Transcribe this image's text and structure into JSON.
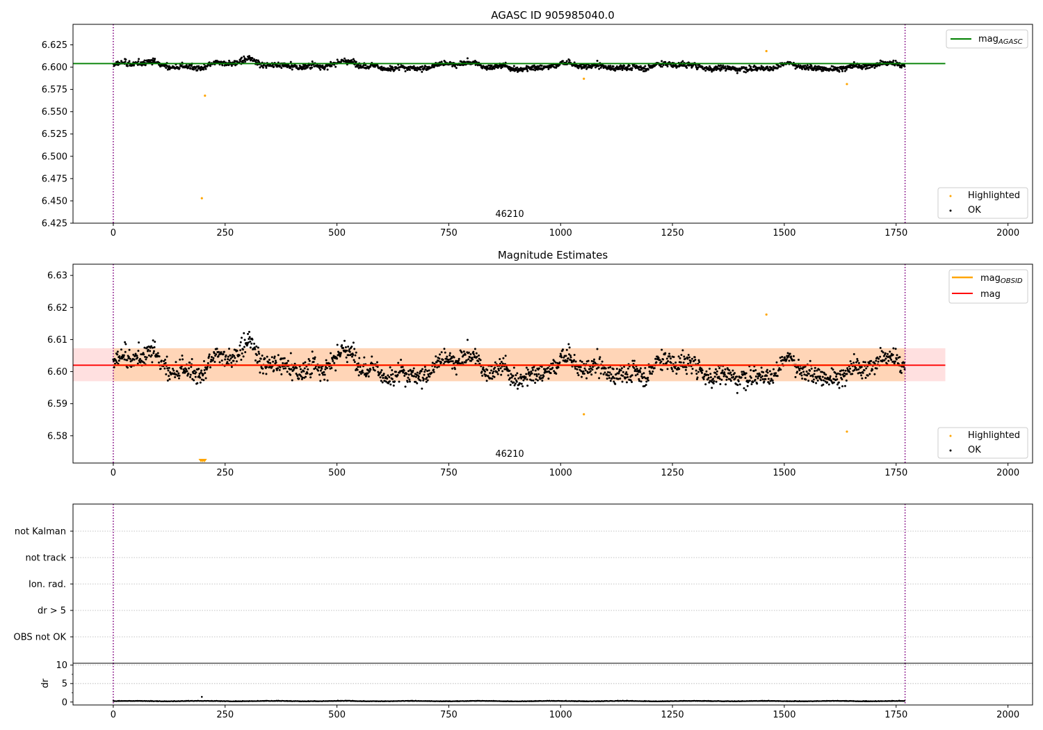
{
  "chart_data": [
    {
      "type": "scatter",
      "title": "AGASC ID 905985040.0",
      "xlim": [
        -90,
        2055
      ],
      "ylim": [
        6.425,
        6.648
      ],
      "xticks": [
        "0",
        "250",
        "500",
        "750",
        "1000",
        "1250",
        "1500",
        "1750",
        "2000"
      ],
      "yticks": [
        "6.425",
        "6.450",
        "6.475",
        "6.500",
        "6.525",
        "6.550",
        "6.575",
        "6.600",
        "6.625"
      ],
      "obsid_label": "46210",
      "obs_boundaries": [
        0,
        1770
      ],
      "mag_agasc": {
        "label": "mag",
        "subscript": "AGASC",
        "value": 6.604,
        "x_range": [
          -90,
          1860
        ],
        "color": "#008000"
      },
      "ok_series": {
        "label": "OK",
        "color": "#000000",
        "n_points": 1770,
        "mean": 6.602,
        "spread": 0.005
      },
      "highlighted": {
        "label": "Highlighted",
        "color": "#ffa500",
        "points": [
          {
            "x": 198,
            "y": 6.453
          },
          {
            "x": 205,
            "y": 6.568
          },
          {
            "x": 1052,
            "y": 6.587
          },
          {
            "x": 1460,
            "y": 6.618
          },
          {
            "x": 1640,
            "y": 6.581
          }
        ]
      }
    },
    {
      "type": "scatter",
      "title": "Magnitude Estimates",
      "xlim": [
        -90,
        2055
      ],
      "ylim": [
        6.5715,
        6.6335
      ],
      "xticks": [
        "0",
        "250",
        "500",
        "750",
        "1000",
        "1250",
        "1500",
        "1750",
        "2000"
      ],
      "yticks": [
        "6.58",
        "6.59",
        "6.60",
        "6.61",
        "6.62",
        "6.63"
      ],
      "obsid_label": "46210",
      "obs_boundaries": [
        0,
        1770
      ],
      "mag_obsid": {
        "label": "mag",
        "subscript": "OBSID",
        "color": "#ffa500",
        "value": 6.602,
        "band": [
          6.597,
          6.6073
        ],
        "x_range": [
          0,
          1770
        ]
      },
      "mag": {
        "label": "mag",
        "color": "#ff0000",
        "value": 6.602,
        "band": [
          6.597,
          6.6073
        ],
        "x_range": [
          -90,
          1860
        ]
      },
      "ok_series": {
        "label": "OK",
        "color": "#000000"
      },
      "highlighted": {
        "label": "Highlighted",
        "color": "#ffa500",
        "points": [
          {
            "x": 1052,
            "y": 6.5867
          },
          {
            "x": 1460,
            "y": 6.6178
          },
          {
            "x": 1640,
            "y": 6.5813
          }
        ],
        "below_range_markers": [
          196,
          200,
          204
        ]
      }
    },
    {
      "type": "scatter",
      "title": "",
      "xlim": [
        -90,
        2055
      ],
      "category_labels": [
        "not Kalman",
        "not track",
        "Ion. rad.",
        "dr > 5",
        "OBS not OK"
      ],
      "flag_points": [],
      "obs_boundaries": [
        0,
        1770
      ]
    },
    {
      "type": "scatter",
      "title": "",
      "ylabel": "dr",
      "xlim": [
        -90,
        2055
      ],
      "ylim": [
        -0.8,
        10.5
      ],
      "xticks": [
        "0",
        "250",
        "500",
        "750",
        "1000",
        "1250",
        "1500",
        "1750",
        "2000"
      ],
      "yticks": [
        "0",
        "5",
        "10"
      ],
      "obs_boundaries": [
        0,
        1770
      ],
      "dr_series": {
        "mean": 0.2,
        "spread": 0.12,
        "outlier": {
          "x": 198,
          "y": 1.4
        }
      }
    }
  ]
}
